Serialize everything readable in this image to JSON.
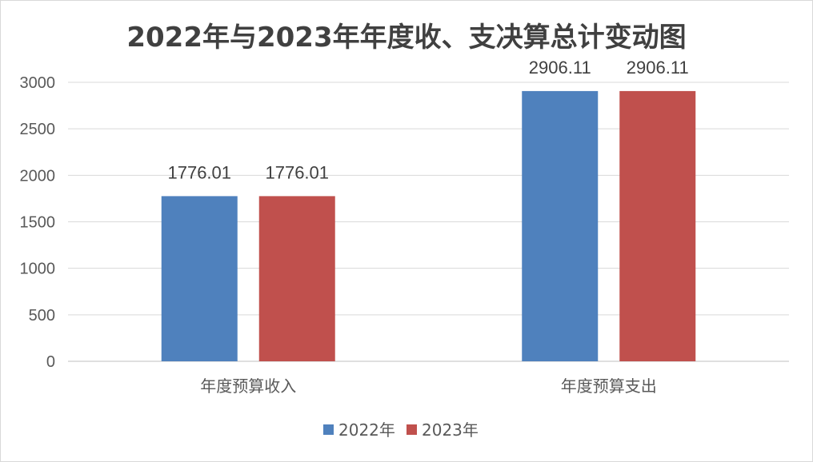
{
  "chart_data": {
    "type": "bar",
    "title": "2022年与2023年年度收、支决算总计变动图",
    "categories": [
      "年度预算收入",
      "年度预算支出"
    ],
    "series": [
      {
        "name": "2022年",
        "values": [
          1776.01,
          2906.11
        ],
        "color": "#4f81bd"
      },
      {
        "name": "2023年",
        "values": [
          1776.01,
          2906.11
        ],
        "color": "#c0504d"
      }
    ],
    "data_labels": [
      [
        "1776.01",
        "2906.11"
      ],
      [
        "1776.01",
        "2906.11"
      ]
    ],
    "xlabel": "",
    "ylabel": "",
    "ylim": [
      0,
      3000
    ],
    "yticks": [
      "0",
      "500",
      "1000",
      "1500",
      "2000",
      "2500",
      "3000"
    ],
    "grid": true,
    "legend": "bottom"
  }
}
